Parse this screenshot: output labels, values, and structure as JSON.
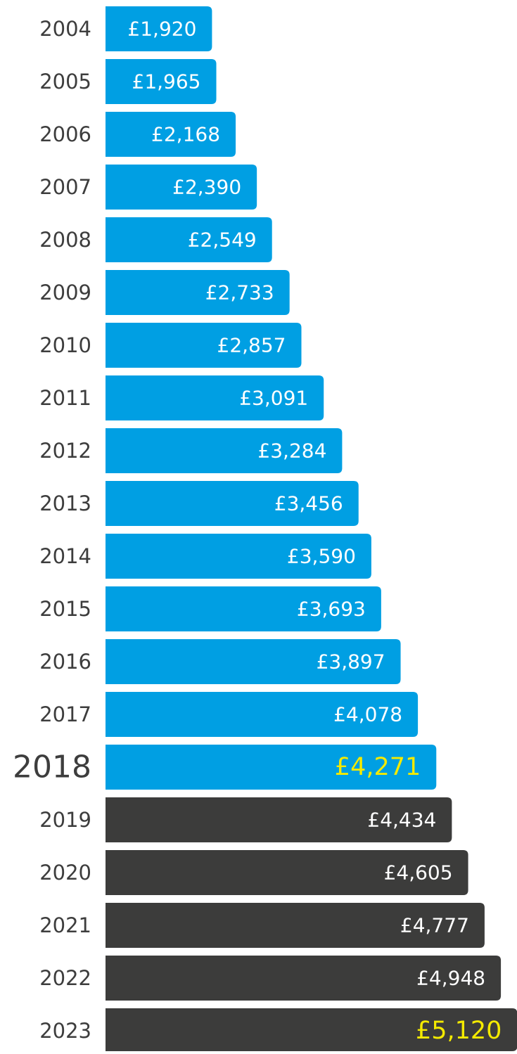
{
  "chart_data": {
    "type": "bar",
    "orientation": "horizontal",
    "categories": [
      "2004",
      "2005",
      "2006",
      "2007",
      "2008",
      "2009",
      "2010",
      "2011",
      "2012",
      "2013",
      "2014",
      "2015",
      "2016",
      "2017",
      "2018",
      "2019",
      "2020",
      "2021",
      "2022",
      "2023"
    ],
    "values": [
      1920,
      1965,
      2168,
      2390,
      2549,
      2733,
      2857,
      3091,
      3284,
      3456,
      3590,
      3693,
      3897,
      4078,
      4271,
      4434,
      4605,
      4777,
      4948,
      5120
    ],
    "value_labels": [
      "£1,920",
      "£1,965",
      "£2,168",
      "£2,390",
      "£2,549",
      "£2,733",
      "£2,857",
      "£3,091",
      "£3,284",
      "£3,456",
      "£3,590",
      "£3,693",
      "£3,897",
      "£4,078",
      "£4,271",
      "£4,434",
      "£4,605",
      "£4,777",
      "£4,948",
      "£5,120"
    ],
    "colors": [
      "#009fe3",
      "#009fe3",
      "#009fe3",
      "#009fe3",
      "#009fe3",
      "#009fe3",
      "#009fe3",
      "#009fe3",
      "#009fe3",
      "#009fe3",
      "#009fe3",
      "#009fe3",
      "#009fe3",
      "#009fe3",
      "#009fe3",
      "#3c3c3b",
      "#3c3c3b",
      "#3c3c3b",
      "#3c3c3b",
      "#3c3c3b"
    ],
    "label_colors": [
      "#ffffff",
      "#ffffff",
      "#ffffff",
      "#ffffff",
      "#ffffff",
      "#ffffff",
      "#ffffff",
      "#ffffff",
      "#ffffff",
      "#ffffff",
      "#ffffff",
      "#ffffff",
      "#ffffff",
      "#ffffff",
      "#f4ea00",
      "#ffffff",
      "#ffffff",
      "#ffffff",
      "#ffffff",
      "#f4ea00"
    ]
  }
}
